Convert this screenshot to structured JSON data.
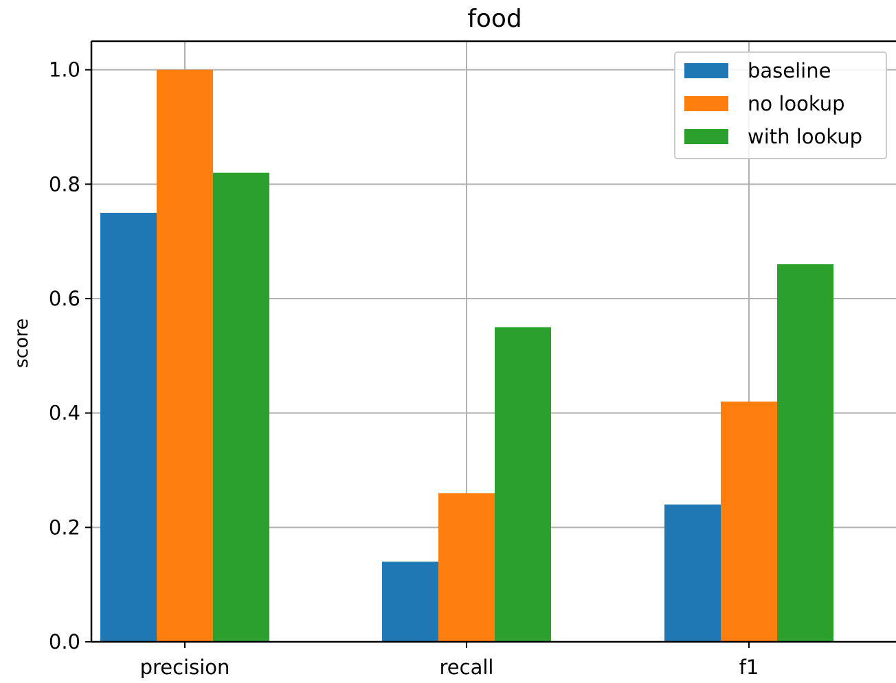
{
  "chart_data": {
    "type": "bar",
    "title": "food",
    "xlabel": "",
    "ylabel": "score",
    "categories": [
      "precision",
      "recall",
      "f1"
    ],
    "series": [
      {
        "name": "baseline",
        "color": "#1f77b4",
        "values": [
          0.75,
          0.14,
          0.24
        ]
      },
      {
        "name": "no lookup",
        "color": "#ff7f0e",
        "values": [
          1.0,
          0.26,
          0.42
        ]
      },
      {
        "name": "with lookup",
        "color": "#2ca02c",
        "values": [
          0.82,
          0.55,
          0.66
        ]
      }
    ],
    "ylim": [
      0,
      1.05
    ],
    "yticks": [
      "0.0",
      "0.2",
      "0.4",
      "0.6",
      "0.8",
      "1.0"
    ],
    "grid": true,
    "legend_position": "top-right"
  }
}
